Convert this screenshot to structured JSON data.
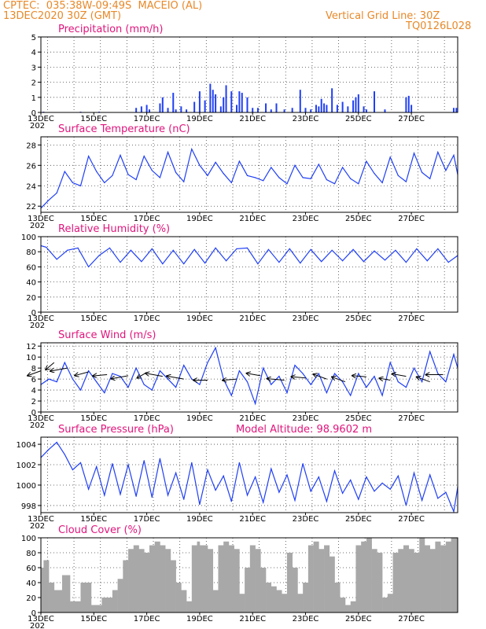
{
  "header": {
    "line1": "CPTEC:  035:38W-09:49S  MACEIO (AL)",
    "line2": "13DEC2020 30Z (GMT)",
    "grid_note": "Vertical Grid Line: 30Z",
    "station_code": "TQ0126L028"
  },
  "x_axis": {
    "labels": [
      "13DEC",
      "15DEC",
      "17DEC",
      "19DEC",
      "21DEC",
      "23DEC",
      "25DEC",
      "27DEC"
    ],
    "stub": "202"
  },
  "panels": [
    {
      "title": "Precipitation (mm/h)"
    },
    {
      "title": "Surface Temperature (nC)"
    },
    {
      "title": "Relative Humidity (%)"
    },
    {
      "title": "Surface Wind (m/s)"
    },
    {
      "title": "Surface Pressure (hPa)",
      "extra": "Model Altitude: 98.9602 m"
    },
    {
      "title": "Cloud Cover (%)"
    }
  ],
  "colors": {
    "header": "#e8892a",
    "title": "#e0157c",
    "series": "#1f3ff5",
    "cloud": "#a8a8a8",
    "wind_arrow": "#000000"
  },
  "chart_data": [
    {
      "type": "bar",
      "title": "Precipitation (mm/h)",
      "x_start_day": 13,
      "x_end_day": 28.75,
      "ylim": [
        0,
        5
      ],
      "yticks": [
        0,
        1,
        2,
        3,
        4,
        5
      ],
      "x": [
        13.1,
        14.5,
        15.2,
        16.6,
        16.8,
        17.0,
        17.1,
        17.5,
        17.6,
        17.8,
        18.0,
        18.1,
        18.3,
        18.5,
        18.8,
        19.0,
        19.2,
        19.4,
        19.5,
        19.6,
        19.8,
        19.9,
        20.0,
        20.2,
        20.4,
        20.5,
        20.6,
        20.8,
        21.0,
        21.2,
        21.5,
        21.7,
        21.9,
        22.2,
        22.5,
        22.8,
        23.0,
        23.2,
        23.4,
        23.5,
        23.6,
        23.7,
        23.8,
        24.0,
        24.2,
        24.4,
        24.6,
        24.8,
        24.9,
        25.0,
        25.2,
        25.3,
        25.6,
        26.0,
        26.8,
        26.9,
        27.0,
        28.6,
        28.7
      ],
      "values": [
        0.05,
        0.05,
        0.05,
        0.3,
        0.4,
        0.5,
        0.2,
        0.6,
        1.0,
        0.3,
        1.3,
        0.2,
        0.4,
        0.2,
        0.7,
        1.4,
        0.8,
        1.9,
        1.5,
        1.2,
        0.4,
        1.0,
        1.8,
        1.4,
        0.5,
        1.4,
        1.3,
        1.0,
        0.3,
        0.3,
        0.6,
        0.2,
        0.6,
        0.2,
        0.3,
        1.5,
        0.3,
        0.2,
        0.5,
        0.4,
        0.9,
        0.6,
        0.5,
        1.6,
        0.5,
        0.7,
        0.4,
        0.8,
        1.0,
        1.2,
        0.4,
        0.2,
        1.4,
        0.2,
        1.0,
        1.1,
        0.5,
        0.3,
        0.3
      ]
    },
    {
      "type": "line",
      "title": "Surface Temperature (nC)",
      "ylim": [
        21.4,
        28.8
      ],
      "yticks": [
        22,
        24,
        26,
        28
      ],
      "x": [
        13.0,
        13.3,
        13.6,
        13.9,
        14.2,
        14.5,
        14.8,
        15.1,
        15.4,
        15.7,
        16.0,
        16.3,
        16.6,
        16.9,
        17.2,
        17.5,
        17.8,
        18.1,
        18.4,
        18.7,
        19.0,
        19.3,
        19.6,
        19.9,
        20.2,
        20.5,
        20.8,
        21.1,
        21.4,
        21.7,
        22.0,
        22.3,
        22.6,
        22.9,
        23.2,
        23.5,
        23.8,
        24.1,
        24.4,
        24.7,
        25.0,
        25.3,
        25.6,
        25.9,
        26.2,
        26.5,
        26.8,
        27.1,
        27.4,
        27.7,
        28.0,
        28.3,
        28.6,
        28.75
      ],
      "y": [
        21.8,
        22.6,
        23.3,
        25.4,
        24.3,
        24.0,
        26.9,
        25.4,
        24.3,
        25.0,
        27.0,
        25.1,
        24.6,
        26.9,
        25.5,
        24.8,
        27.3,
        25.3,
        24.4,
        27.6,
        26.0,
        25.0,
        26.3,
        25.2,
        24.3,
        26.4,
        25.0,
        24.8,
        24.5,
        25.8,
        24.8,
        24.2,
        26.0,
        24.8,
        24.7,
        26.1,
        24.6,
        24.2,
        25.8,
        24.7,
        24.2,
        26.4,
        25.2,
        24.3,
        26.8,
        25.0,
        24.4,
        27.2,
        25.3,
        24.7,
        27.3,
        25.5,
        27.0,
        25.1
      ]
    },
    {
      "type": "line",
      "title": "Relative Humidity (%)",
      "ylim": [
        0,
        100
      ],
      "yticks": [
        0,
        20,
        40,
        60,
        80,
        100
      ],
      "x": [
        13.0,
        13.2,
        13.6,
        14.0,
        14.4,
        14.8,
        15.2,
        15.6,
        16.0,
        16.4,
        16.8,
        17.2,
        17.6,
        18.0,
        18.4,
        18.8,
        19.2,
        19.6,
        20.0,
        20.4,
        20.8,
        21.2,
        21.6,
        22.0,
        22.4,
        22.8,
        23.2,
        23.6,
        24.0,
        24.4,
        24.8,
        25.2,
        25.6,
        26.0,
        26.4,
        26.8,
        27.2,
        27.6,
        28.0,
        28.4,
        28.75
      ],
      "y": [
        88,
        86,
        70,
        82,
        85,
        60,
        75,
        85,
        66,
        82,
        67,
        84,
        64,
        82,
        64,
        83,
        65,
        85,
        68,
        84,
        85,
        64,
        83,
        66,
        84,
        65,
        83,
        67,
        82,
        68,
        83,
        67,
        81,
        69,
        82,
        66,
        84,
        68,
        84,
        66,
        75
      ]
    },
    {
      "type": "line",
      "title": "Surface Wind (m/s)",
      "ylim": [
        0,
        12.6
      ],
      "yticks": [
        0,
        2,
        4,
        6,
        8,
        10,
        12
      ],
      "x": [
        13.0,
        13.3,
        13.6,
        13.9,
        14.2,
        14.5,
        14.8,
        15.1,
        15.4,
        15.7,
        16.0,
        16.3,
        16.6,
        16.9,
        17.2,
        17.5,
        17.8,
        18.1,
        18.4,
        18.7,
        19.0,
        19.3,
        19.6,
        19.9,
        20.2,
        20.5,
        20.8,
        21.1,
        21.4,
        21.7,
        22.0,
        22.3,
        22.6,
        22.9,
        23.2,
        23.5,
        23.8,
        24.1,
        24.4,
        24.7,
        25.0,
        25.3,
        25.6,
        25.9,
        26.2,
        26.5,
        26.8,
        27.1,
        27.4,
        27.7,
        28.0,
        28.3,
        28.6,
        28.75
      ],
      "y": [
        5.0,
        6.0,
        5.5,
        9.0,
        6.0,
        4.0,
        7.5,
        5.5,
        3.5,
        7.0,
        6.5,
        4.5,
        8.0,
        5.0,
        4.0,
        7.5,
        6.0,
        4.5,
        8.5,
        6.0,
        5.0,
        9.0,
        11.7,
        6.0,
        3.0,
        7.5,
        5.5,
        1.5,
        8.0,
        5.0,
        6.5,
        3.5,
        8.5,
        7.0,
        5.0,
        7.0,
        3.5,
        7.0,
        5.5,
        3.0,
        7.0,
        4.5,
        6.5,
        3.0,
        9.0,
        5.5,
        4.5,
        8.0,
        5.5,
        11.0,
        7.0,
        5.5,
        10.5,
        8.0
      ],
      "arrows": [
        {
          "x": 13.0,
          "y": 7.5,
          "speed": 3,
          "dir_deg": 160
        },
        {
          "x": 13.5,
          "y": 9.0,
          "speed": 2,
          "dir_deg": 140
        },
        {
          "x": 14.0,
          "y": 8.0,
          "speed": 4,
          "dir_deg": 170
        },
        {
          "x": 14.8,
          "y": 7.3,
          "speed": 3,
          "dir_deg": 165
        },
        {
          "x": 15.5,
          "y": 6.8,
          "speed": 3,
          "dir_deg": 175
        },
        {
          "x": 16.3,
          "y": 6.6,
          "speed": 4,
          "dir_deg": 170
        },
        {
          "x": 17.0,
          "y": 7.2,
          "speed": 2,
          "dir_deg": 150
        },
        {
          "x": 17.6,
          "y": 6.5,
          "speed": 4,
          "dir_deg": 190
        },
        {
          "x": 18.4,
          "y": 6.0,
          "speed": 4,
          "dir_deg": 190
        },
        {
          "x": 19.3,
          "y": 5.8,
          "speed": 3,
          "dir_deg": 180
        },
        {
          "x": 20.4,
          "y": 6.0,
          "speed": 3,
          "dir_deg": 175
        },
        {
          "x": 21.3,
          "y": 6.6,
          "speed": 3,
          "dir_deg": 190
        },
        {
          "x": 22.2,
          "y": 5.8,
          "speed": 4,
          "dir_deg": 185
        },
        {
          "x": 23.0,
          "y": 6.2,
          "speed": 3,
          "dir_deg": 185
        },
        {
          "x": 23.8,
          "y": 6.0,
          "speed": 3,
          "dir_deg": 200
        },
        {
          "x": 24.5,
          "y": 5.5,
          "speed": 3,
          "dir_deg": 200
        },
        {
          "x": 25.3,
          "y": 6.4,
          "speed": 3,
          "dir_deg": 185
        },
        {
          "x": 26.2,
          "y": 5.8,
          "speed": 2,
          "dir_deg": 190
        },
        {
          "x": 26.8,
          "y": 6.5,
          "speed": 3,
          "dir_deg": 190
        },
        {
          "x": 27.7,
          "y": 5.5,
          "speed": 3,
          "dir_deg": 200
        },
        {
          "x": 28.2,
          "y": 6.8,
          "speed": 4,
          "dir_deg": 180
        }
      ]
    },
    {
      "type": "line",
      "title": "Surface Pressure (hPa)",
      "ylim": [
        997.3,
        1004.7
      ],
      "yticks": [
        998,
        1000,
        1002,
        1004
      ],
      "x": [
        13.0,
        13.3,
        13.6,
        13.9,
        14.2,
        14.5,
        14.8,
        15.1,
        15.4,
        15.7,
        16.0,
        16.3,
        16.6,
        16.9,
        17.2,
        17.5,
        17.8,
        18.1,
        18.4,
        18.7,
        19.0,
        19.3,
        19.6,
        19.9,
        20.2,
        20.5,
        20.8,
        21.1,
        21.4,
        21.7,
        22.0,
        22.3,
        22.6,
        22.9,
        23.2,
        23.5,
        23.8,
        24.1,
        24.4,
        24.7,
        25.0,
        25.3,
        25.6,
        25.9,
        26.2,
        26.5,
        26.8,
        27.1,
        27.4,
        27.7,
        28.0,
        28.3,
        28.6,
        28.75
      ],
      "y": [
        1002.7,
        1003.5,
        1004.2,
        1003.0,
        1001.5,
        1002.2,
        999.6,
        1001.8,
        999.0,
        1002.1,
        999.1,
        1002.0,
        998.9,
        1002.4,
        998.8,
        1002.6,
        999.0,
        1001.2,
        998.6,
        1002.2,
        998.1,
        1001.5,
        999.5,
        1000.9,
        998.4,
        1002.2,
        999.0,
        1000.8,
        998.3,
        1001.6,
        999.3,
        1001.0,
        998.5,
        1002.1,
        999.4,
        1000.8,
        998.4,
        1001.4,
        999.2,
        1000.5,
        998.6,
        1000.8,
        999.4,
        1000.2,
        999.6,
        1000.9,
        998.0,
        1001.2,
        998.5,
        1001.0,
        998.7,
        999.3,
        997.4,
        999.8
      ]
    },
    {
      "type": "area",
      "title": "Cloud Cover (%)",
      "ylim": [
        0,
        100
      ],
      "yticks": [
        0,
        20,
        40,
        60,
        80,
        100
      ],
      "x": [
        13.0,
        13.1,
        13.3,
        13.5,
        13.8,
        14.1,
        14.5,
        14.9,
        15.3,
        15.7,
        15.9,
        16.1,
        16.3,
        16.5,
        16.7,
        16.9,
        17.1,
        17.3,
        17.5,
        17.7,
        17.9,
        18.1,
        18.3,
        18.5,
        18.7,
        18.9,
        19.0,
        19.3,
        19.5,
        19.7,
        19.9,
        20.1,
        20.3,
        20.5,
        20.7,
        20.9,
        21.1,
        21.3,
        21.5,
        21.7,
        21.9,
        22.1,
        22.3,
        22.5,
        22.7,
        22.9,
        23.1,
        23.3,
        23.5,
        23.7,
        23.9,
        24.1,
        24.3,
        24.5,
        24.7,
        24.9,
        25.1,
        25.3,
        25.5,
        25.7,
        25.9,
        26.1,
        26.3,
        26.5,
        26.7,
        26.9,
        27.1,
        27.3,
        27.5,
        27.7,
        27.9,
        28.1,
        28.3,
        28.5,
        28.75
      ],
      "y": [
        60,
        70,
        40,
        30,
        50,
        15,
        40,
        10,
        20,
        30,
        45,
        70,
        85,
        90,
        85,
        80,
        90,
        95,
        90,
        85,
        70,
        40,
        30,
        15,
        90,
        95,
        90,
        85,
        30,
        90,
        95,
        90,
        85,
        25,
        60,
        90,
        85,
        60,
        40,
        35,
        30,
        25,
        80,
        60,
        25,
        40,
        90,
        95,
        85,
        90,
        75,
        40,
        20,
        10,
        15,
        90,
        95,
        100,
        85,
        80,
        20,
        25,
        80,
        85,
        90,
        85,
        80,
        100,
        90,
        85,
        95,
        90,
        95,
        100,
        95
      ]
    }
  ]
}
